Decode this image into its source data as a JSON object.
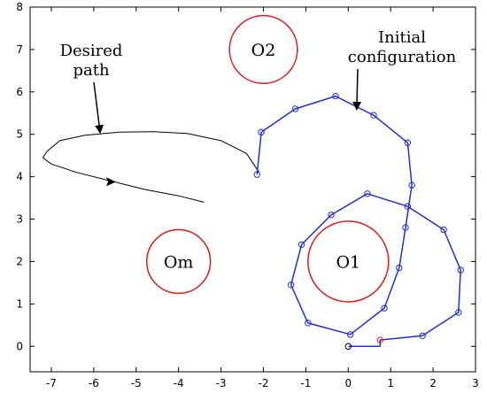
{
  "chart_data": {
    "type": "line",
    "xlim": [
      -7.5,
      3
    ],
    "ylim": [
      -0.6,
      8
    ],
    "xticks": [
      -7,
      -6,
      -5,
      -4,
      -3,
      -2,
      -1,
      0,
      1,
      2,
      3
    ],
    "yticks": [
      0,
      1,
      2,
      3,
      4,
      5,
      6,
      7,
      8
    ],
    "grid": false,
    "obstacles": [
      {
        "name": "O2",
        "cx": -2.0,
        "cy": 7.0,
        "r": 0.8,
        "color": "#e31a1c"
      },
      {
        "name": "O1",
        "cx": 0.0,
        "cy": 2.0,
        "r": 0.95,
        "color": "#e31a1c"
      },
      {
        "name": "Om",
        "cx": -4.0,
        "cy": 2.0,
        "r": 0.75,
        "color": "#e31a1c"
      }
    ],
    "desired_path": {
      "color": "#000000",
      "points": [
        [
          -2.1,
          4.1
        ],
        [
          -2.4,
          4.55
        ],
        [
          -3.0,
          4.85
        ],
        [
          -3.8,
          5.02
        ],
        [
          -4.6,
          5.06
        ],
        [
          -5.4,
          5.05
        ],
        [
          -6.2,
          4.98
        ],
        [
          -6.8,
          4.85
        ],
        [
          -7.1,
          4.6
        ],
        [
          -7.2,
          4.45
        ],
        [
          -7.0,
          4.3
        ],
        [
          -6.4,
          4.1
        ],
        [
          -5.6,
          3.9
        ],
        [
          -4.8,
          3.7
        ],
        [
          -4.0,
          3.55
        ],
        [
          -3.4,
          3.4
        ]
      ],
      "arrow_at": [
        -5.6,
        3.9
      ]
    },
    "initial_configuration": {
      "color": "#1f2fd6",
      "base": [
        0.0,
        0.0
      ],
      "first_joint": [
        0.75,
        0.0
      ],
      "joints": [
        [
          0.75,
          0.15
        ],
        [
          1.75,
          0.25
        ],
        [
          2.6,
          0.8
        ],
        [
          2.65,
          1.8
        ],
        [
          2.25,
          2.75
        ],
        [
          1.4,
          3.3
        ],
        [
          0.45,
          3.6
        ],
        [
          -0.4,
          3.1
        ],
        [
          -1.1,
          2.4
        ],
        [
          -1.35,
          1.45
        ],
        [
          -0.95,
          0.55
        ],
        [
          0.05,
          0.28
        ],
        [
          0.85,
          0.9
        ],
        [
          1.2,
          1.85
        ],
        [
          1.35,
          2.8
        ],
        [
          1.5,
          3.8
        ],
        [
          1.4,
          4.8
        ],
        [
          0.6,
          5.45
        ],
        [
          -0.3,
          5.9
        ],
        [
          -1.25,
          5.6
        ],
        [
          -2.05,
          5.05
        ],
        [
          -2.15,
          4.05
        ]
      ]
    },
    "annotations": [
      {
        "text": [
          "Desired",
          "path"
        ],
        "arrow_to": [
          -5.85,
          5.05
        ]
      },
      {
        "text": [
          "Initial",
          "configuration"
        ],
        "arrow_to": [
          0.2,
          5.6
        ]
      }
    ]
  }
}
